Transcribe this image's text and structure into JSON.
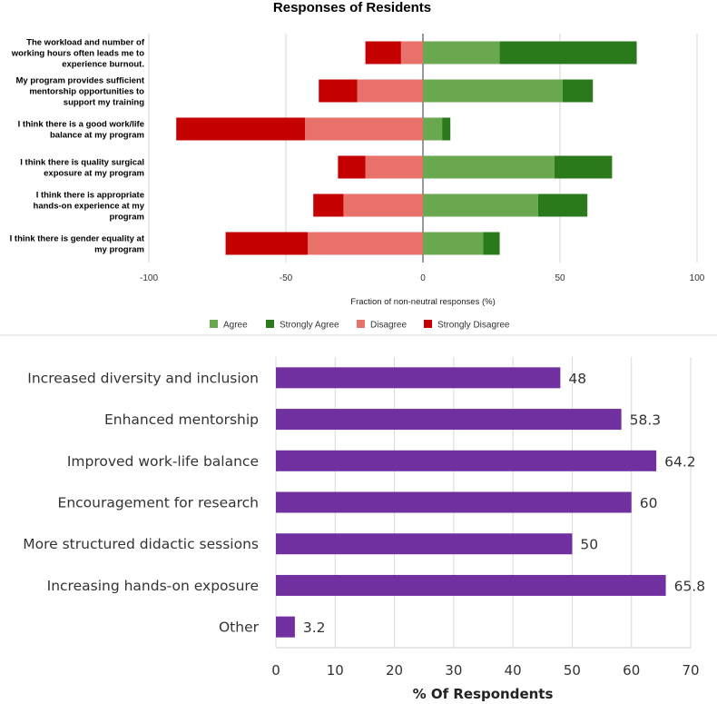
{
  "chart_data": [
    {
      "type": "bar",
      "orientation": "horizontal",
      "stacked": "diverging",
      "title": "Responses of Residents",
      "xlabel": "Fraction of non-neutral responses (%)",
      "ylabel": "",
      "xlim": [
        -100,
        100
      ],
      "xticks": [
        -100,
        -50,
        0,
        50,
        100
      ],
      "grid": true,
      "legend": "bottom",
      "categories": [
        [
          "The workload and number of",
          "working hours often leads me to",
          "experience burnout."
        ],
        [
          "My program provides sufficient",
          "mentorship opportunities to",
          "support my training"
        ],
        [
          "I think there is a good work/life",
          "balance at my program"
        ],
        [
          "I think there is quality surgical",
          "exposure at my program"
        ],
        [
          "I think there is appropriate",
          "hands-on experience at my",
          "program"
        ],
        [
          "I think there is gender equality at",
          "my program"
        ]
      ],
      "series": [
        {
          "name": "Agree",
          "color": "#6aa84f",
          "values": [
            28,
            51,
            7,
            48,
            42,
            22
          ]
        },
        {
          "name": "Strongly Agree",
          "color": "#2a7a1c",
          "values": [
            50,
            11,
            3,
            21,
            18,
            6
          ]
        },
        {
          "name": "Disagree",
          "color": "#e8716a",
          "values": [
            -8,
            -24,
            -43,
            -21,
            -29,
            -42
          ]
        },
        {
          "name": "Strongly Disagree",
          "color": "#c40000",
          "values": [
            -13,
            -14,
            -47,
            -10,
            -11,
            -30
          ]
        }
      ]
    },
    {
      "type": "bar",
      "orientation": "horizontal",
      "title": "",
      "xlabel": "% Of Respondents",
      "ylabel": "",
      "xlim": [
        0,
        70
      ],
      "xticks": [
        0,
        10,
        20,
        30,
        40,
        50,
        60,
        70
      ],
      "grid": true,
      "color": "#7030a0",
      "categories": [
        "Increased diversity and inclusion",
        "Enhanced mentorship",
        "Improved work-life balance",
        "Encouragement for research",
        "More structured didactic sessions",
        "Increasing hands-on exposure",
        "Other"
      ],
      "values": [
        48,
        58.3,
        64.2,
        60,
        50,
        65.8,
        3.2
      ],
      "value_labels": [
        "48",
        "58.3",
        "64.2",
        "60",
        "50",
        "65.8",
        "3.2"
      ]
    }
  ]
}
